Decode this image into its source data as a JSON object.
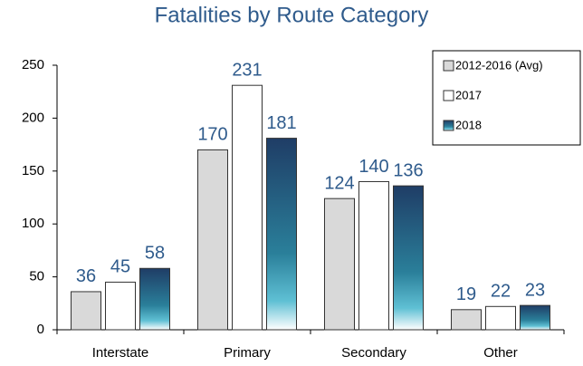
{
  "chart_data": {
    "type": "bar",
    "title": "Fatalities by Route Category",
    "categories": [
      "Interstate",
      "Primary",
      "Secondary",
      "Other"
    ],
    "series": [
      {
        "name": "2012-2016 (Avg)",
        "color": "#d9d9d9",
        "values": [
          36,
          170,
          124,
          19
        ]
      },
      {
        "name": "2017",
        "color": "#ffffff",
        "values": [
          45,
          231,
          140,
          22
        ]
      },
      {
        "name": "2018",
        "color": "#1f3d66",
        "values": [
          58,
          181,
          136,
          23
        ]
      }
    ],
    "ylim": [
      0,
      250
    ],
    "yticks": [
      0,
      50,
      100,
      150,
      200,
      250
    ],
    "grid": false,
    "legend": "upper right"
  }
}
